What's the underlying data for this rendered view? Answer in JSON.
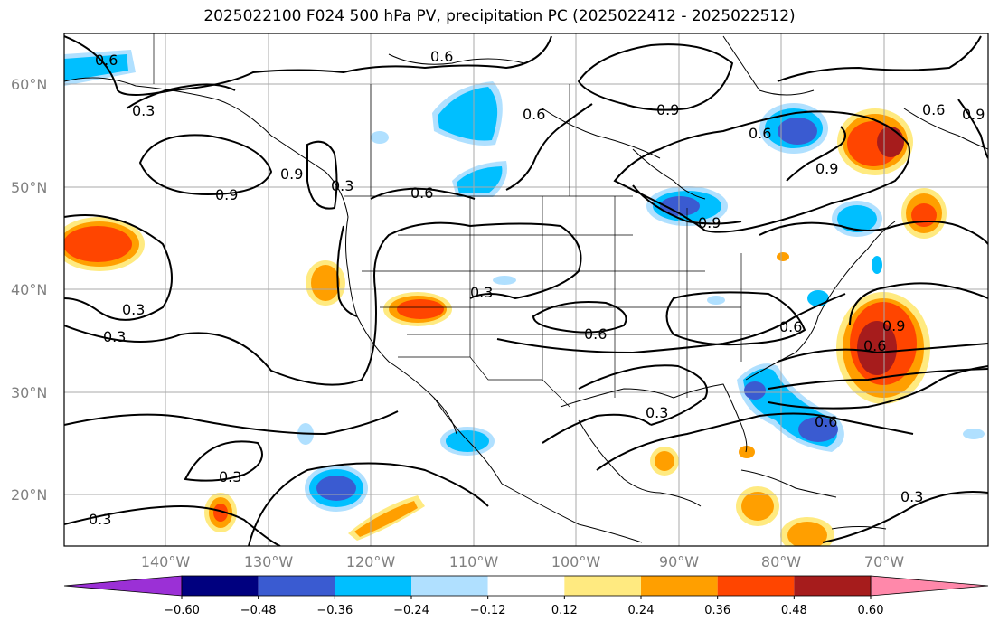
{
  "title": "2025022100 F024 500 hPa PV, precipitation PC (2025022412 - 2025022512)",
  "latitude_labels": [
    "60°N",
    "50°N",
    "40°N",
    "30°N",
    "20°N"
  ],
  "longitude_labels": [
    "140°W",
    "130°W",
    "120°W",
    "110°W",
    "100°W",
    "90°W",
    "80°W",
    "70°W"
  ],
  "contour_labels": [
    "0.6",
    "0.6",
    "0.3",
    "0.9",
    "0.6",
    "0.9",
    "0.6",
    "0.9",
    "0.6",
    "0.3",
    "0.6",
    "0.9",
    "0.6",
    "0.6",
    "0.3",
    "0.3",
    "0.3",
    "0.3",
    "0.3",
    "0.3",
    "0.6",
    "0.6",
    "0.9",
    "0.3",
    "0.9",
    "0.9"
  ],
  "colorbar": {
    "ticks": [
      "−0.60",
      "−0.48",
      "−0.36",
      "−0.24",
      "−0.12",
      "0.12",
      "0.24",
      "0.36",
      "0.48",
      "0.60"
    ],
    "colors": [
      "#9b30d6",
      "#00007f",
      "#3a5bd1",
      "#00bfff",
      "#b0e0ff",
      "#ffffff",
      "#ffea80",
      "#ff9f00",
      "#ff4500",
      "#a61c1c",
      "#ff88aa"
    ]
  }
}
